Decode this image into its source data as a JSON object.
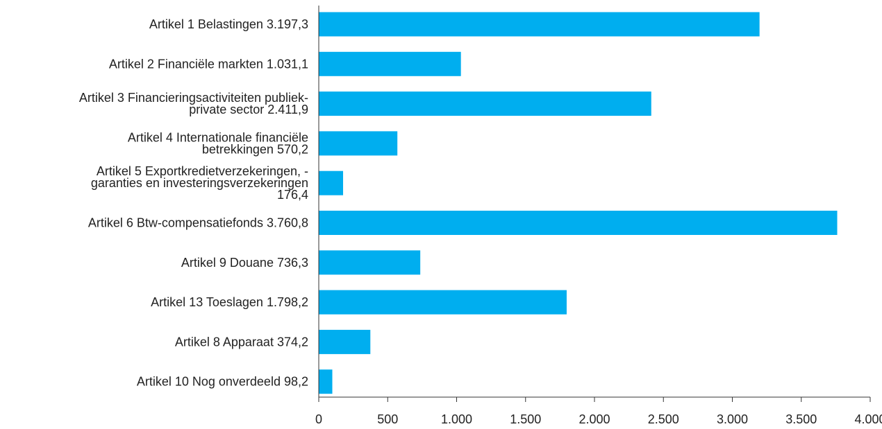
{
  "chart_data": {
    "type": "bar",
    "orientation": "horizontal",
    "categories": [
      "Artikel 1 Belastingen 3.197,3",
      "Artikel 2 Financiële markten 1.031,1",
      "Artikel 3 Financieringsactiviteiten publiek-private sector 2.411,9",
      "Artikel 4 Internationale financiële betrekkingen 570,2",
      "Artikel 5 Exportkredietverzekeringen, -garanties en investeringsverzekeringen 176,4",
      "Artikel 6 Btw-compensatiefonds 3.760,8",
      "Artikel 9 Douane 736,3",
      "Artikel 13 Toeslagen 1.798,2",
      "Artikel 8 Apparaat 374,2",
      "Artikel 10 Nog onverdeeld 98,2"
    ],
    "category_lines": [
      [
        "Artikel 1 Belastingen 3.197,3"
      ],
      [
        "Artikel 2 Financiële markten 1.031,1"
      ],
      [
        "Artikel 3 Financieringsactiviteiten publiek-",
        "private sector 2.411,9"
      ],
      [
        "Artikel 4 Internationale financiële",
        "betrekkingen 570,2"
      ],
      [
        "Artikel 5 Exportkredietverzekeringen, -",
        "garanties en investeringsverzekeringen",
        "176,4"
      ],
      [
        "Artikel 6 Btw-compensatiefonds 3.760,8"
      ],
      [
        "Artikel 9 Douane 736,3"
      ],
      [
        "Artikel 13 Toeslagen 1.798,2"
      ],
      [
        "Artikel 8 Apparaat 374,2"
      ],
      [
        "Artikel 10 Nog onverdeeld 98,2"
      ]
    ],
    "values": [
      3197.3,
      1031.1,
      2411.9,
      570.2,
      176.4,
      3760.8,
      736.3,
      1798.2,
      374.2,
      98.2
    ],
    "xlim": [
      0,
      4000
    ],
    "xticks": [
      0,
      500,
      1000,
      1500,
      2000,
      2500,
      3000,
      3500,
      4000
    ],
    "xtick_labels": [
      "0",
      "500",
      "1.000",
      "1.500",
      "2.000",
      "2.500",
      "3.000",
      "3.500",
      "4.000"
    ],
    "title": "",
    "xlabel": "",
    "ylabel": "",
    "grid": false,
    "legend": "none",
    "bar_color": "#00aeef",
    "axis_color": "#333333",
    "text_color": "#222222"
  }
}
